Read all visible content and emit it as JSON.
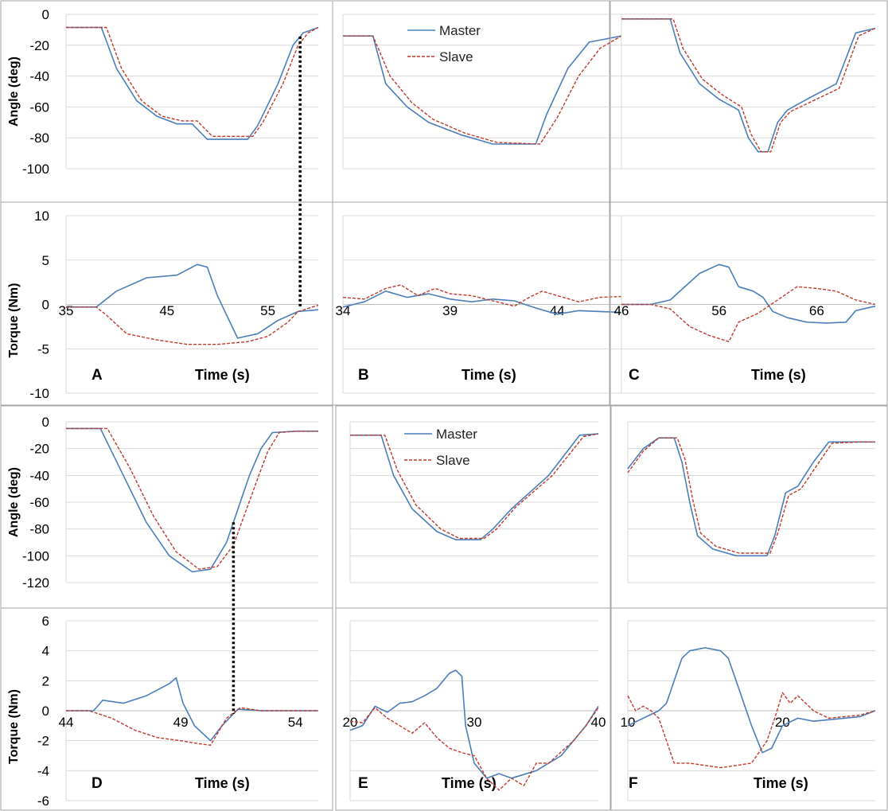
{
  "colors": {
    "master": "#4a7ebb",
    "slave": "#c0392b",
    "grid": "#d9d9d9",
    "frame": "#a6a6a6",
    "marker": "#000000"
  },
  "legend": {
    "master": "Master",
    "slave": "Slave"
  },
  "chart_data": [
    {
      "panel": "A",
      "type": "line",
      "xlabel": "Time (s)",
      "xticks": [
        "35",
        "45",
        "55"
      ],
      "angle": {
        "ylabel": "Angle (deg)",
        "ylim": [
          -100,
          0
        ],
        "yticks": [
          "0",
          "-20",
          "-40",
          "-60",
          "-80",
          "-100"
        ],
        "series": [
          {
            "name": "Master",
            "x": [
              35,
              38.5,
              40,
              42,
              44,
              46,
              47.5,
              49,
              50,
              53,
              54,
              56,
              57.5,
              58.5,
              60
            ],
            "y": [
              -8.5,
              -8.5,
              -35,
              -56,
              -66,
              -71,
              -71,
              -81,
              -81,
              -81,
              -72,
              -45,
              -20,
              -12,
              -8.5
            ]
          },
          {
            "name": "Slave",
            "x": [
              35,
              39,
              40.5,
              42.5,
              44.5,
              46.5,
              48,
              49.5,
              50.5,
              53.5,
              54.5,
              56.5,
              58,
              59,
              60
            ],
            "y": [
              -8.5,
              -8.5,
              -35,
              -56,
              -66,
              -69,
              -69,
              -79,
              -79,
              -79,
              -70,
              -45,
              -20,
              -12,
              -8.5
            ]
          }
        ]
      },
      "torque": {
        "ylabel": "Torque (Nm)",
        "ylim": [
          -10,
          10
        ],
        "yticks": [
          "10",
          "5",
          "0",
          "-5",
          "-10"
        ],
        "series": [
          {
            "name": "Master",
            "x": [
              35,
              38,
              40,
              43,
              46,
              48,
              49,
              50,
              52,
              54,
              56,
              58,
              60
            ],
            "y": [
              -0.3,
              -0.3,
              1.5,
              3.0,
              3.3,
              4.5,
              4.2,
              1.0,
              -3.8,
              -3.3,
              -1.8,
              -0.8,
              -0.6
            ]
          },
          {
            "name": "Slave",
            "x": [
              35,
              38,
              39,
              41,
              44,
              47,
              50,
              53,
              55,
              57,
              58,
              60
            ],
            "y": [
              -0.3,
              -0.3,
              -1.2,
              -3.3,
              -4.0,
              -4.5,
              -4.5,
              -4.2,
              -3.6,
              -2.0,
              -0.8,
              -0.1
            ]
          }
        ]
      },
      "marker_time": 58.2,
      "x_range": [
        35,
        60
      ]
    },
    {
      "panel": "B",
      "type": "line",
      "xlabel": "Time (s)",
      "xticks": [
        "34",
        "39",
        "44"
      ],
      "angle": {
        "ylim": [
          -100,
          0
        ],
        "series": [
          {
            "name": "Master",
            "x": [
              34,
              35.4,
              36,
              37,
              38,
              39.5,
              41,
              43,
              43.5,
              44.5,
              45.5,
              47
            ],
            "y": [
              -14,
              -14,
              -45,
              -60,
              -70,
              -78,
              -84,
              -84,
              -65,
              -35,
              -18,
              -14
            ]
          },
          {
            "name": "Slave",
            "x": [
              34,
              35.4,
              36.2,
              37.2,
              38.2,
              39.7,
              41.2,
              43.2,
              44,
              45,
              46,
              47
            ],
            "y": [
              -14,
              -14,
              -40,
              -57,
              -68,
              -77,
              -83,
              -84,
              -67,
              -40,
              -22,
              -14
            ]
          }
        ]
      },
      "torque": {
        "ylim": [
          -10,
          10
        ],
        "series": [
          {
            "name": "Master",
            "x": [
              34,
              35,
              36,
              37,
              38,
              39,
              40,
              41,
              42,
              43,
              44,
              45,
              46,
              47
            ],
            "y": [
              -0.3,
              0.3,
              1.5,
              0.8,
              1.2,
              0.6,
              0.3,
              0.6,
              0.4,
              -0.4,
              -1.1,
              -0.7,
              -0.8,
              -0.9
            ]
          },
          {
            "name": "Slave",
            "x": [
              34,
              35,
              36,
              36.7,
              37.5,
              38.3,
              39,
              40,
              41,
              42,
              42.7,
              43.3,
              44,
              45,
              46,
              47
            ],
            "y": [
              0.8,
              0.6,
              1.8,
              2.2,
              1.0,
              1.8,
              1.2,
              1.0,
              0.4,
              -0.2,
              0.8,
              1.5,
              1.0,
              0.3,
              0.8,
              0.9
            ]
          }
        ]
      },
      "x_range": [
        34,
        47
      ]
    },
    {
      "panel": "C",
      "type": "line",
      "xlabel": "Time (s)",
      "xticks": [
        "46",
        "56",
        "66"
      ],
      "angle": {
        "ylim": [
          -100,
          0
        ],
        "series": [
          {
            "name": "Master",
            "x": [
              46,
              51,
              52,
              54,
              56,
              58,
              59,
              60,
              61,
              62,
              63,
              65,
              68,
              70,
              72
            ],
            "y": [
              -3,
              -3,
              -25,
              -45,
              -55,
              -62,
              -80,
              -89,
              -89,
              -70,
              -62,
              -55,
              -45,
              -12,
              -9
            ]
          },
          {
            "name": "Slave",
            "x": [
              46,
              51.3,
              52.3,
              54.3,
              56.3,
              58.3,
              59.3,
              60.3,
              61.3,
              62.3,
              63.3,
              65.3,
              68.3,
              70.3,
              72
            ],
            "y": [
              -3,
              -3,
              -22,
              -42,
              -52,
              -60,
              -78,
              -89,
              -89,
              -70,
              -63,
              -57,
              -48,
              -14,
              -9
            ]
          }
        ]
      },
      "torque": {
        "ylim": [
          -10,
          10
        ],
        "series": [
          {
            "name": "Master",
            "x": [
              46,
              49,
              51,
              54,
              56,
              57,
              58,
              59.5,
              60.5,
              61.5,
              63,
              65,
              67,
              69,
              70,
              72
            ],
            "y": [
              0,
              0,
              0.5,
              3.5,
              4.5,
              4.2,
              2.0,
              1.5,
              0.8,
              -0.8,
              -1.5,
              -2.0,
              -2.1,
              -2.0,
              -0.7,
              -0.2
            ]
          },
          {
            "name": "Slave",
            "x": [
              46,
              49,
              51,
              53,
              55,
              57,
              58,
              60,
              62,
              64,
              66,
              68,
              70,
              72
            ],
            "y": [
              0,
              0,
              -0.5,
              -2.5,
              -3.5,
              -4.2,
              -2.0,
              -1.0,
              0.5,
              2.0,
              1.8,
              1.5,
              0.5,
              0.0
            ]
          }
        ]
      },
      "x_range": [
        46,
        72
      ]
    },
    {
      "panel": "D",
      "type": "line",
      "xlabel": "Time (s)",
      "xticks": [
        "44",
        "49",
        "54"
      ],
      "angle": {
        "ylabel": "Angle (deg)",
        "ylim": [
          -120,
          0
        ],
        "yticks": [
          "0",
          "-20",
          "-40",
          "-60",
          "-80",
          "-100",
          "-120"
        ],
        "series": [
          {
            "name": "Master",
            "x": [
              44,
              45.5,
              46.5,
              47.5,
              48.5,
              49.5,
              50.3,
              51,
              52,
              52.5,
              53,
              54,
              55
            ],
            "y": [
              -5,
              -5,
              -40,
              -75,
              -100,
              -112,
              -110,
              -90,
              -40,
              -20,
              -8,
              -7,
              -7
            ]
          },
          {
            "name": "Slave",
            "x": [
              44,
              45.8,
              46.8,
              47.8,
              48.8,
              49.8,
              50.6,
              51.3,
              52.3,
              52.8,
              53.3,
              54,
              55
            ],
            "y": [
              -5,
              -5,
              -35,
              -70,
              -97,
              -110,
              -108,
              -92,
              -45,
              -22,
              -8,
              -7,
              -7
            ]
          }
        ]
      },
      "torque": {
        "ylabel": "Torque (Nm)",
        "ylim": [
          -6,
          6
        ],
        "yticks": [
          "6",
          "4",
          "2",
          "0",
          "-2",
          "-4",
          "-6"
        ],
        "series": [
          {
            "name": "Master",
            "x": [
              44,
              45.2,
              45.6,
              46.5,
              47.5,
              48.5,
              48.8,
              49.1,
              49.6,
              50.3,
              50.8,
              51.5,
              52.5,
              55
            ],
            "y": [
              0,
              0,
              0.7,
              0.5,
              1.0,
              1.8,
              2.2,
              0.5,
              -1.0,
              -2.0,
              -1.0,
              0.1,
              0.0,
              0.0
            ]
          },
          {
            "name": "Slave",
            "x": [
              44,
              45,
              46,
              47,
              48,
              49,
              49.8,
              50.3,
              51,
              51.6,
              52.5,
              55
            ],
            "y": [
              0,
              0,
              -0.5,
              -1.3,
              -1.8,
              -2.0,
              -2.2,
              -2.3,
              -0.5,
              0.2,
              0.0,
              0.0
            ]
          }
        ]
      },
      "marker_time": 51.3,
      "x_range": [
        44,
        55
      ]
    },
    {
      "panel": "E",
      "type": "line",
      "xlabel": "Time (s)",
      "xticks": [
        "20",
        "30",
        "40"
      ],
      "angle": {
        "ylim": [
          -120,
          0
        ],
        "series": [
          {
            "name": "Master",
            "x": [
              20,
              22.5,
              23.5,
              25,
              27,
              28.5,
              30.5,
              31.5,
              33,
              36,
              38.5,
              40
            ],
            "y": [
              -10,
              -10,
              -40,
              -65,
              -82,
              -88,
              -88,
              -80,
              -65,
              -40,
              -10,
              -9
            ]
          },
          {
            "name": "Slave",
            "x": [
              20,
              22.8,
              23.8,
              25.3,
              27.3,
              28.8,
              30.8,
              31.8,
              33.3,
              36.3,
              38.8,
              40
            ],
            "y": [
              -10,
              -10,
              -36,
              -62,
              -80,
              -87,
              -87,
              -80,
              -64,
              -40,
              -11,
              -9
            ]
          }
        ]
      },
      "torque": {
        "ylim": [
          -6,
          6
        ],
        "series": [
          {
            "name": "Master",
            "x": [
              20,
              21,
              22,
              23,
              24,
              25,
              26,
              27,
              28,
              28.5,
              29,
              29.3,
              30,
              31,
              32,
              33,
              35,
              37,
              39,
              40
            ],
            "y": [
              -1.3,
              -1.0,
              0.3,
              -0.1,
              0.5,
              0.6,
              1.0,
              1.5,
              2.5,
              2.7,
              2.3,
              -1.0,
              -3.5,
              -4.5,
              -4.2,
              -4.5,
              -4.0,
              -3.0,
              -1.0,
              0.3
            ]
          },
          {
            "name": "Slave",
            "x": [
              20,
              21,
              22,
              23,
              24,
              25,
              26,
              27,
              28,
              29,
              30,
              31,
              32,
              33,
              34,
              35,
              36,
              38,
              39,
              40
            ],
            "y": [
              -0.7,
              -0.8,
              0.2,
              -0.5,
              -1.0,
              -1.5,
              -0.8,
              -1.8,
              -2.5,
              -2.8,
              -3.0,
              -4.5,
              -5.3,
              -4.5,
              -5.0,
              -3.5,
              -3.5,
              -2.0,
              -1.0,
              0.2
            ]
          }
        ]
      },
      "x_range": [
        20,
        40
      ]
    },
    {
      "panel": "F",
      "type": "line",
      "xlabel": "Time (s)",
      "xticks": [
        "10",
        "20"
      ],
      "angle": {
        "ylim": [
          -120,
          0
        ],
        "series": [
          {
            "name": "Master",
            "x": [
              10,
              11,
              12,
              13,
              13.5,
              14,
              14.5,
              15.5,
              17,
              19,
              19.5,
              20.2,
              21,
              22,
              23,
              25,
              26
            ],
            "y": [
              -35,
              -20,
              -12,
              -12,
              -30,
              -60,
              -85,
              -95,
              -100,
              -100,
              -85,
              -53,
              -48,
              -30,
              -15,
              -15,
              -15
            ]
          },
          {
            "name": "Slave",
            "x": [
              10,
              11,
              12,
              13.2,
              13.7,
              14.2,
              14.7,
              15.7,
              17.2,
              19.2,
              19.7,
              20.4,
              21.2,
              22.2,
              23.2,
              25,
              26
            ],
            "y": [
              -38,
              -22,
              -12,
              -12,
              -28,
              -58,
              -83,
              -93,
              -98,
              -98,
              -83,
              -55,
              -50,
              -33,
              -16,
              -15,
              -15
            ]
          }
        ]
      },
      "torque": {
        "ylim": [
          -6,
          6
        ],
        "series": [
          {
            "name": "Master",
            "x": [
              10,
              11,
              12,
              12.5,
              13,
              13.5,
              14,
              15,
              16,
              16.5,
              17,
              18,
              18.7,
              19.3,
              20,
              21,
              22,
              24,
              25,
              26
            ],
            "y": [
              -1.0,
              -0.5,
              0.0,
              0.5,
              2.0,
              3.5,
              4.0,
              4.2,
              4.0,
              3.5,
              2.0,
              -1.0,
              -2.8,
              -2.5,
              -1.0,
              -0.5,
              -0.7,
              -0.5,
              -0.4,
              0.0
            ]
          },
          {
            "name": "Slave",
            "x": [
              10,
              10.5,
              11,
              11.5,
              12,
              13,
              14,
              16,
              18,
              19,
              19.5,
              20,
              20.5,
              21,
              22,
              23,
              24,
              25,
              26
            ],
            "y": [
              1.0,
              0.0,
              0.3,
              0.0,
              -0.5,
              -3.5,
              -3.5,
              -3.8,
              -3.5,
              -2.0,
              -0.5,
              1.2,
              0.5,
              1.0,
              0.0,
              -0.5,
              -0.4,
              -0.3,
              0.0
            ]
          }
        ]
      },
      "x_range": [
        10,
        26
      ]
    }
  ]
}
